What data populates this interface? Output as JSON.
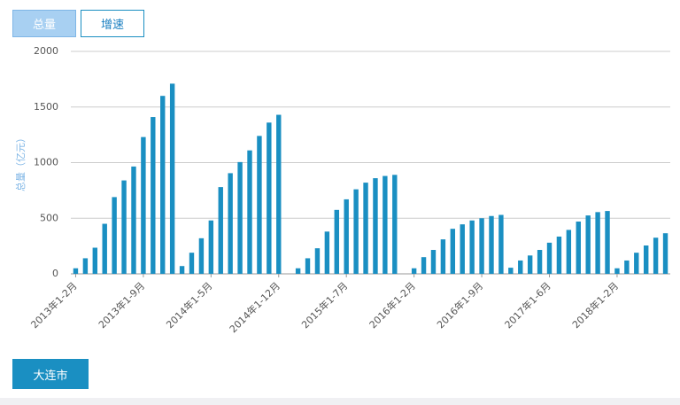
{
  "buttons": [
    "总量",
    "增速"
  ],
  "region_button": "大连市",
  "chart_data": {
    "type": "bar",
    "y_label": "总量（亿元）",
    "color": "#1a8fc2",
    "categories": [
      "2013年1-2月",
      null,
      null,
      null,
      null,
      null,
      null,
      "2013年1-9月",
      null,
      null,
      null,
      null,
      null,
      null,
      "2014年1-5月",
      null,
      null,
      null,
      null,
      null,
      null,
      "2014年1-12月",
      null,
      null,
      null,
      null,
      null,
      null,
      "2015年1-7月",
      null,
      null,
      null,
      null,
      null,
      null,
      "2016年1-2月",
      null,
      null,
      null,
      null,
      null,
      null,
      "2016年1-9月",
      null,
      null,
      null,
      null,
      null,
      null,
      "2017年1-6月",
      null,
      null,
      null,
      null,
      null,
      null,
      "2018年1-2月",
      null,
      null,
      null,
      null,
      null
    ],
    "values": [
      50,
      140,
      235,
      450,
      690,
      840,
      965,
      1230,
      1410,
      1600,
      1710,
      70,
      190,
      320,
      480,
      780,
      905,
      1005,
      1110,
      1240,
      1360,
      1430,
      null,
      50,
      140,
      230,
      380,
      575,
      670,
      760,
      820,
      860,
      880,
      890,
      null,
      50,
      150,
      215,
      310,
      405,
      445,
      480,
      500,
      520,
      530,
      55,
      120,
      165,
      215,
      280,
      335,
      395,
      470,
      525,
      555,
      565,
      50,
      120,
      190,
      255,
      325,
      365
    ],
    "ylim": [
      0,
      2000
    ],
    "yticks": [
      0,
      500,
      1000,
      1500,
      2000
    ],
    "grid": true
  }
}
